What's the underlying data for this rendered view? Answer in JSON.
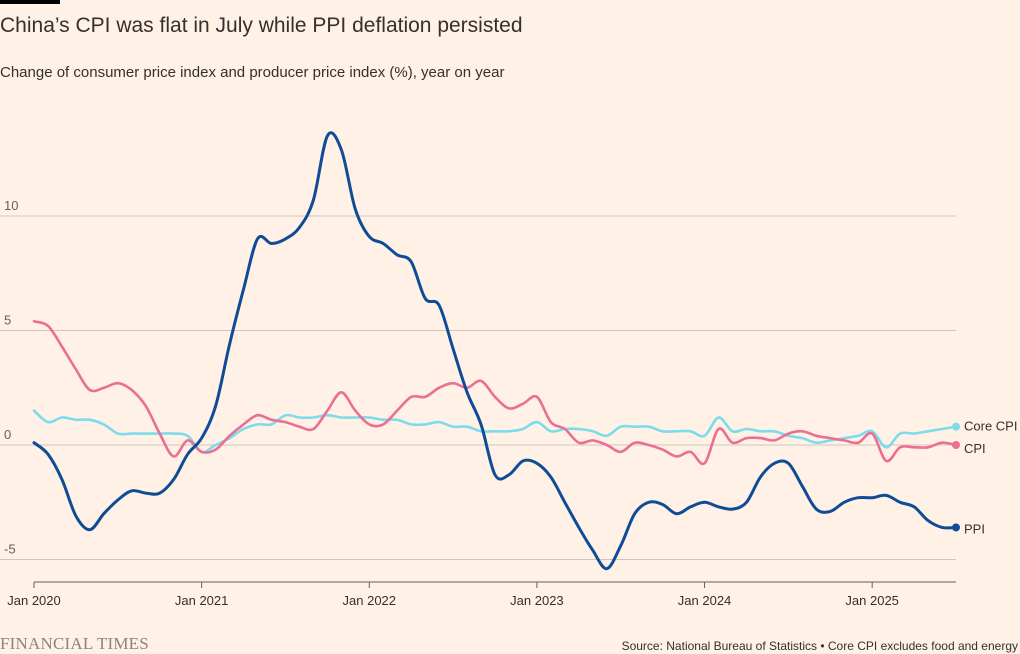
{
  "title": "China’s CPI was flat in July while PPI deflation persisted",
  "subtitle": "Change of consumer price index and producer price index (%), year on year",
  "brand": "FINANCIAL TIMES",
  "source": "Source: National Bureau of Statistics • Core CPI excludes food and energy",
  "chart_data": {
    "type": "line",
    "title": "China’s CPI was flat in July while PPI deflation persisted",
    "subtitle": "Change of consumer price index and producer price index (%), year on year",
    "xlabel": "",
    "ylabel": "",
    "xlim": [
      "2020-01",
      "2025-07"
    ],
    "ylim": [
      -6,
      13.5
    ],
    "yticks": [
      10,
      5,
      0,
      -5
    ],
    "ytick_labels": [
      "10",
      "5",
      "0",
      "-5"
    ],
    "xticks": [
      "2020-01",
      "2021-01",
      "2022-01",
      "2023-01",
      "2024-01",
      "2025-01"
    ],
    "xtick_labels": [
      "Jan 2020",
      "Jan 2021",
      "Jan 2022",
      "Jan 2023",
      "Jan 2024",
      "Jan 2025"
    ],
    "grid": true,
    "legend": "direct labels at line ends (right)",
    "x": [
      "2020-01",
      "2020-02",
      "2020-03",
      "2020-04",
      "2020-05",
      "2020-06",
      "2020-07",
      "2020-08",
      "2020-09",
      "2020-10",
      "2020-11",
      "2020-12",
      "2021-01",
      "2021-02",
      "2021-03",
      "2021-04",
      "2021-05",
      "2021-06",
      "2021-07",
      "2021-08",
      "2021-09",
      "2021-10",
      "2021-11",
      "2021-12",
      "2022-01",
      "2022-02",
      "2022-03",
      "2022-04",
      "2022-05",
      "2022-06",
      "2022-07",
      "2022-08",
      "2022-09",
      "2022-10",
      "2022-11",
      "2022-12",
      "2023-01",
      "2023-02",
      "2023-03",
      "2023-04",
      "2023-05",
      "2023-06",
      "2023-07",
      "2023-08",
      "2023-09",
      "2023-10",
      "2023-11",
      "2023-12",
      "2024-01",
      "2024-02",
      "2024-03",
      "2024-04",
      "2024-05",
      "2024-06",
      "2024-07",
      "2024-08",
      "2024-09",
      "2024-10",
      "2024-11",
      "2024-12",
      "2025-01",
      "2025-02",
      "2025-03",
      "2025-04",
      "2025-05",
      "2025-06",
      "2025-07"
    ],
    "series": [
      {
        "name": "Core CPI",
        "color": "#7DDCEB",
        "values": [
          1.5,
          1.0,
          1.2,
          1.1,
          1.1,
          0.9,
          0.5,
          0.5,
          0.5,
          0.5,
          0.5,
          0.4,
          -0.3,
          0.0,
          0.3,
          0.7,
          0.9,
          0.9,
          1.3,
          1.2,
          1.2,
          1.3,
          1.2,
          1.2,
          1.2,
          1.1,
          1.1,
          0.9,
          0.9,
          1.0,
          0.8,
          0.8,
          0.6,
          0.6,
          0.6,
          0.7,
          1.0,
          0.6,
          0.7,
          0.7,
          0.6,
          0.4,
          0.8,
          0.8,
          0.8,
          0.6,
          0.6,
          0.6,
          0.4,
          1.2,
          0.6,
          0.7,
          0.6,
          0.6,
          0.4,
          0.3,
          0.1,
          0.2,
          0.3,
          0.4,
          0.6,
          -0.1,
          0.5,
          0.5,
          0.6,
          0.7,
          0.8
        ]
      },
      {
        "name": "CPI",
        "color": "#E96F93",
        "values": [
          5.4,
          5.2,
          4.3,
          3.3,
          2.4,
          2.5,
          2.7,
          2.4,
          1.7,
          0.5,
          -0.5,
          0.2,
          -0.3,
          -0.2,
          0.4,
          0.9,
          1.3,
          1.1,
          1.0,
          0.8,
          0.7,
          1.5,
          2.3,
          1.5,
          0.9,
          0.9,
          1.5,
          2.1,
          2.1,
          2.5,
          2.7,
          2.5,
          2.8,
          2.1,
          1.6,
          1.8,
          2.1,
          1.0,
          0.7,
          0.1,
          0.2,
          0.0,
          -0.3,
          0.1,
          0.0,
          -0.2,
          -0.5,
          -0.3,
          -0.8,
          0.7,
          0.1,
          0.3,
          0.3,
          0.2,
          0.5,
          0.6,
          0.4,
          0.3,
          0.2,
          0.1,
          0.5,
          -0.7,
          -0.1,
          -0.1,
          -0.1,
          0.1,
          0.0
        ]
      },
      {
        "name": "PPI",
        "color": "#0F4C97",
        "values": [
          0.1,
          -0.4,
          -1.5,
          -3.1,
          -3.7,
          -3.0,
          -2.4,
          -2.0,
          -2.1,
          -2.1,
          -1.5,
          -0.4,
          0.3,
          1.7,
          4.4,
          6.8,
          9.0,
          8.8,
          9.0,
          9.5,
          10.7,
          13.5,
          12.9,
          10.3,
          9.1,
          8.8,
          8.3,
          8.0,
          6.4,
          6.1,
          4.2,
          2.3,
          0.9,
          -1.3,
          -1.3,
          -0.7,
          -0.8,
          -1.4,
          -2.5,
          -3.6,
          -4.6,
          -5.4,
          -4.4,
          -3.0,
          -2.5,
          -2.6,
          -3.0,
          -2.7,
          -2.5,
          -2.7,
          -2.8,
          -2.5,
          -1.4,
          -0.8,
          -0.8,
          -1.8,
          -2.8,
          -2.9,
          -2.5,
          -2.3,
          -2.3,
          -2.2,
          -2.5,
          -2.7,
          -3.3,
          -3.6,
          -3.6
        ]
      }
    ]
  }
}
